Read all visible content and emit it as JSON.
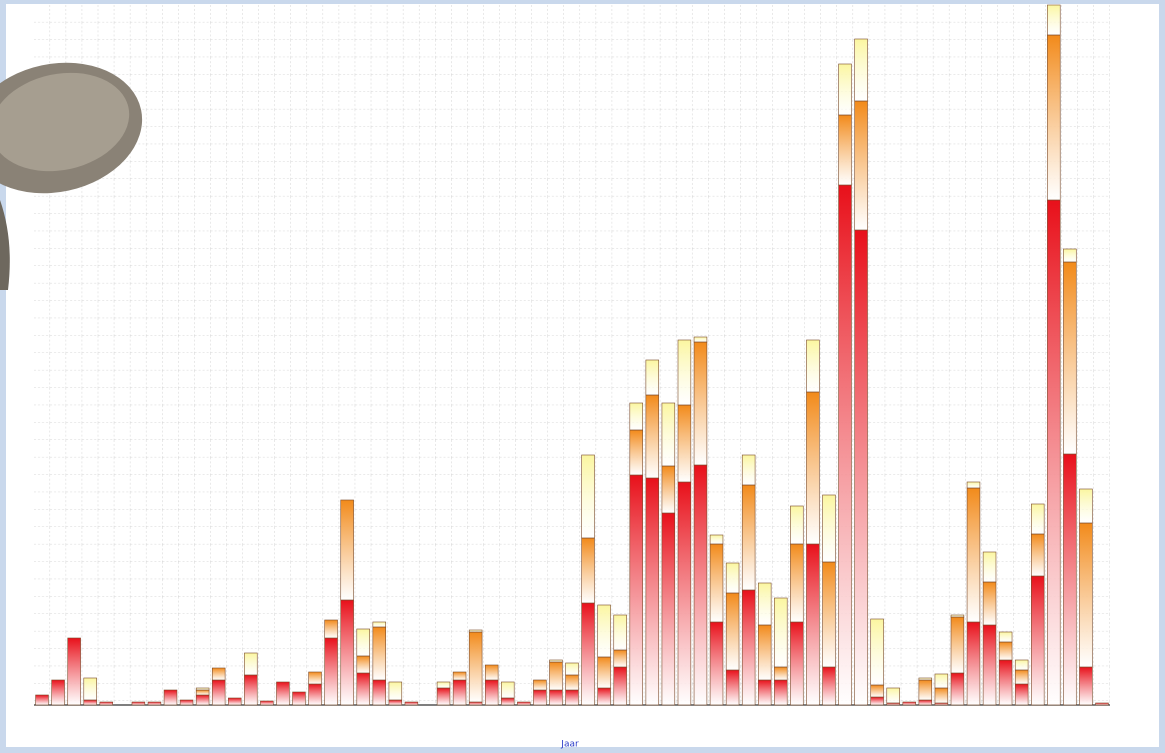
{
  "chart_data": {
    "type": "stacked_bar",
    "x_label": "Jaar",
    "categories": [
      null,
      null,
      null,
      null,
      null,
      null,
      null,
      null,
      null,
      null,
      null,
      null,
      null,
      null,
      null,
      null,
      null,
      null,
      null,
      null,
      null,
      null,
      null,
      null,
      null,
      null,
      null,
      null,
      null,
      null,
      null,
      null,
      null,
      null,
      null,
      null,
      null,
      null,
      null,
      null,
      null,
      null,
      null,
      null,
      null,
      null,
      null,
      null,
      null,
      null,
      null,
      null,
      null,
      null,
      null,
      null,
      null,
      null,
      null,
      null,
      null,
      null,
      null,
      null,
      null,
      null,
      null
    ],
    "ylim": [
      0,
      700
    ],
    "grid": true,
    "series": [
      {
        "color": "#e8101a",
        "values": [
          10,
          25,
          67,
          5,
          3,
          0,
          3,
          3,
          15,
          5,
          10,
          25,
          7,
          30,
          4,
          23,
          13,
          21,
          67,
          105,
          32,
          25,
          5,
          3,
          0,
          17,
          25,
          3,
          25,
          7,
          3,
          15,
          15,
          15,
          102,
          17,
          38,
          230,
          227,
          192,
          223,
          240,
          83,
          35,
          115,
          25,
          25,
          83,
          161,
          38,
          520,
          475,
          8,
          2,
          3,
          5,
          2,
          32,
          83,
          80,
          45,
          21,
          129,
          505,
          251,
          38,
          2
        ]
      },
      {
        "color": "#f28a1a",
        "values": [
          0,
          0,
          0,
          0,
          0,
          0,
          0,
          0,
          0,
          0,
          5,
          12,
          0,
          0,
          0,
          0,
          0,
          12,
          18,
          100,
          17,
          53,
          0,
          0,
          0,
          0,
          8,
          70,
          15,
          0,
          0,
          10,
          28,
          15,
          65,
          31,
          17,
          45,
          83,
          47,
          77,
          123,
          78,
          77,
          105,
          55,
          13,
          78,
          152,
          105,
          70,
          129,
          12,
          0,
          0,
          20,
          15,
          56,
          134,
          43,
          18,
          14,
          42,
          165,
          192,
          144,
          0
        ]
      },
      {
        "color": "#fbf6a0",
        "values": [
          0,
          0,
          0,
          22,
          0,
          0,
          0,
          0,
          0,
          0,
          2,
          0,
          0,
          22,
          0,
          0,
          0,
          0,
          0,
          0,
          27,
          5,
          18,
          0,
          0,
          6,
          0,
          2,
          0,
          16,
          0,
          0,
          2,
          12,
          83,
          52,
          35,
          27,
          35,
          63,
          65,
          5,
          9,
          30,
          30,
          42,
          69,
          38,
          52,
          67,
          51,
          62,
          66,
          15,
          0,
          2,
          14,
          2,
          6,
          30,
          10,
          10,
          30,
          30,
          13,
          34,
          0
        ]
      }
    ]
  }
}
